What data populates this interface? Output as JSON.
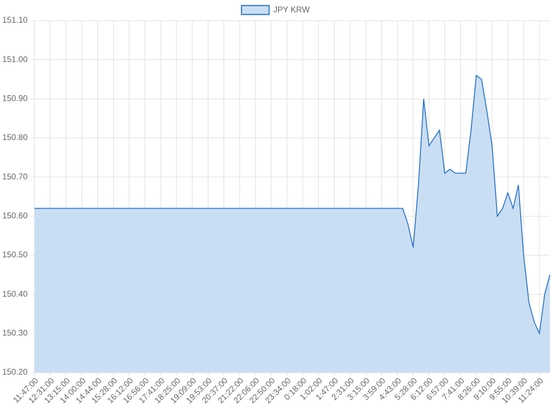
{
  "chart_data": {
    "type": "line",
    "legend": "top",
    "grid": true,
    "fill": true,
    "categories": [
      "11:47:00",
      null,
      null,
      "12:31:00",
      null,
      null,
      "13:15:00",
      null,
      null,
      "14:00:00",
      null,
      null,
      "14:44:00",
      null,
      null,
      "15:28:00",
      null,
      null,
      "16:12:00",
      null,
      null,
      "16:56:00",
      null,
      null,
      "17:41:00",
      null,
      null,
      "18:25:00",
      null,
      null,
      "19:09:00",
      null,
      null,
      "19:53:00",
      null,
      null,
      "20:37:00",
      null,
      null,
      "21:22:00",
      null,
      null,
      "22:06:00",
      null,
      null,
      "22:50:00",
      null,
      null,
      "23:34:00",
      null,
      null,
      "0:18:00",
      null,
      null,
      "1:02:00",
      null,
      null,
      "1:47:00",
      null,
      null,
      "2:31:00",
      null,
      null,
      "3:15:00",
      null,
      null,
      "3:59:00",
      null,
      null,
      "4:43:00",
      null,
      null,
      "5:28:00",
      null,
      null,
      "6:12:00",
      null,
      null,
      "6:57:00",
      null,
      null,
      "7:41:00",
      null,
      null,
      "8:26:00",
      null,
      null,
      "9:10:00",
      null,
      null,
      "9:55:00",
      null,
      null,
      "10:39:00",
      null,
      null,
      "11:24:00",
      null,
      null
    ],
    "series": [
      {
        "name": "JPY KRW",
        "color": "#1f6fc5",
        "fill_color": "#cadef3",
        "values": [
          150.62,
          150.62,
          150.62,
          150.62,
          150.62,
          150.62,
          150.62,
          150.62,
          150.62,
          150.62,
          150.62,
          150.62,
          150.62,
          150.62,
          150.62,
          150.62,
          150.62,
          150.62,
          150.62,
          150.62,
          150.62,
          150.62,
          150.62,
          150.62,
          150.62,
          150.62,
          150.62,
          150.62,
          150.62,
          150.62,
          150.62,
          150.62,
          150.62,
          150.62,
          150.62,
          150.62,
          150.62,
          150.62,
          150.62,
          150.62,
          150.62,
          150.62,
          150.62,
          150.62,
          150.62,
          150.62,
          150.62,
          150.62,
          150.62,
          150.62,
          150.62,
          150.62,
          150.62,
          150.62,
          150.62,
          150.62,
          150.62,
          150.62,
          150.62,
          150.62,
          150.62,
          150.62,
          150.62,
          150.62,
          150.62,
          150.62,
          150.62,
          150.62,
          150.62,
          150.62,
          150.62,
          150.58,
          150.52,
          150.68,
          150.9,
          150.78,
          150.8,
          150.82,
          150.71,
          150.72,
          150.71,
          150.71,
          150.71,
          150.82,
          150.96,
          150.95,
          150.87,
          150.78,
          150.6,
          150.62,
          150.66,
          150.62,
          150.68,
          150.5,
          150.38,
          150.33,
          150.3,
          150.4,
          150.45
        ]
      }
    ],
    "ylim": [
      150.2,
      151.1
    ],
    "yticks": [
      {
        "value": 150.2,
        "label": "150.20"
      },
      {
        "value": 150.3,
        "label": "150.30"
      },
      {
        "value": 150.4,
        "label": "150.40"
      },
      {
        "value": 150.5,
        "label": "150.50"
      },
      {
        "value": 150.6,
        "label": "150.60"
      },
      {
        "value": 150.7,
        "label": "150.70"
      },
      {
        "value": 150.8,
        "label": "150.80"
      },
      {
        "value": 150.9,
        "label": "150.90"
      },
      {
        "value": 151.0,
        "label": "151.00"
      },
      {
        "value": 151.1,
        "label": "151.10"
      }
    ]
  }
}
